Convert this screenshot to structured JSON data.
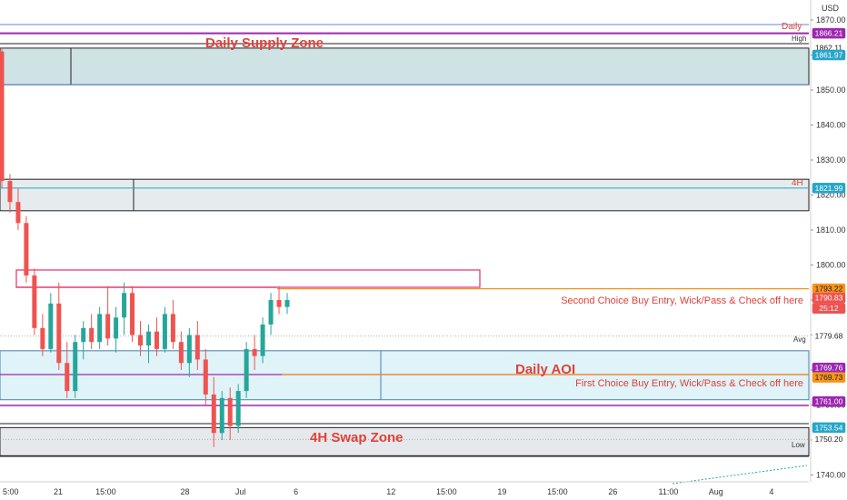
{
  "chart_data": {
    "type": "candlestick",
    "currency": "USD",
    "ylim": [
      1737,
      1873
    ],
    "y_ticks": [
      "1870.00",
      "1860.00",
      "1850.00",
      "1840.00",
      "1830.00",
      "1820.00",
      "1810.00",
      "1800.00",
      "1790.00",
      "1780.00",
      "1770.00",
      "1760.00",
      "1750.00",
      "1740.00"
    ],
    "x_ticks": [
      {
        "label": "5:00",
        "pos": 0
      },
      {
        "label": "21",
        "pos": 7
      },
      {
        "label": "15:00",
        "pos": 13
      },
      {
        "label": "28",
        "pos": 23
      },
      {
        "label": "Jul",
        "pos": 30
      },
      {
        "label": "6",
        "pos": 37
      },
      {
        "label": "12",
        "pos": 49
      },
      {
        "label": "15:00",
        "pos": 56
      },
      {
        "label": "19",
        "pos": 63
      },
      {
        "label": "15:00",
        "pos": 70
      },
      {
        "label": "26",
        "pos": 77
      },
      {
        "label": "11:00",
        "pos": 84
      },
      {
        "label": "Aug",
        "pos": 90
      },
      {
        "label": "4",
        "pos": 97
      }
    ],
    "x_range": [
      0,
      102
    ],
    "candles": [
      [
        1861,
        1862,
        1822,
        1824
      ],
      [
        1824,
        1826,
        1815,
        1818
      ],
      [
        1818,
        1822,
        1810,
        1812
      ],
      [
        1812,
        1814,
        1795,
        1797
      ],
      [
        1797,
        1799,
        1780,
        1782
      ],
      [
        1782,
        1786,
        1774,
        1776
      ],
      [
        1776,
        1792,
        1775,
        1789
      ],
      [
        1789,
        1795,
        1770,
        1772
      ],
      [
        1772,
        1778,
        1762,
        1764
      ],
      [
        1764,
        1780,
        1762,
        1778
      ],
      [
        1778,
        1784,
        1773,
        1782
      ],
      [
        1782,
        1786,
        1776,
        1778
      ],
      [
        1778,
        1788,
        1776,
        1786
      ],
      [
        1786,
        1794,
        1777,
        1779
      ],
      [
        1779,
        1788,
        1775,
        1785
      ],
      [
        1785,
        1795,
        1780,
        1792
      ],
      [
        1792,
        1794,
        1778,
        1780
      ],
      [
        1780,
        1784,
        1774,
        1777
      ],
      [
        1777,
        1783,
        1772,
        1781
      ],
      [
        1781,
        1785,
        1774,
        1776
      ],
      [
        1776,
        1788,
        1775,
        1786
      ],
      [
        1786,
        1790,
        1776,
        1778
      ],
      [
        1778,
        1781,
        1770,
        1772
      ],
      [
        1772,
        1782,
        1768,
        1780
      ],
      [
        1780,
        1784,
        1770,
        1773
      ],
      [
        1773,
        1776,
        1760,
        1763
      ],
      [
        1763,
        1768,
        1748,
        1752
      ],
      [
        1752,
        1764,
        1750,
        1762
      ],
      [
        1762,
        1765,
        1750,
        1754
      ],
      [
        1754,
        1766,
        1752,
        1764
      ],
      [
        1764,
        1778,
        1762,
        1776
      ],
      [
        1776,
        1780,
        1770,
        1774
      ],
      [
        1774,
        1785,
        1772,
        1783
      ],
      [
        1783,
        1792,
        1780,
        1790
      ],
      [
        1790,
        1794,
        1786,
        1788
      ],
      [
        1788,
        1792,
        1786,
        1790
      ]
    ],
    "lines": [
      {
        "name": "Daily",
        "value": 1866.21,
        "color": "#9c27b0"
      },
      {
        "name": "High",
        "value": 1862.11,
        "color": "#333333"
      },
      {
        "name": "4H",
        "value": 1821.99,
        "color": "#26a6c8"
      },
      {
        "name": "second_choice",
        "value": 1793.22,
        "color": "#f7931a"
      },
      {
        "name": "first_choice",
        "value": 1769.73,
        "color": "#f7931a"
      },
      {
        "name": "Avg",
        "value": 1779.68,
        "color": "#888888"
      },
      {
        "name": "Low",
        "value": 1750.2,
        "color": "#888888"
      }
    ],
    "zones": [
      {
        "name": "Daily Supply Zone",
        "top": 1861.97,
        "bottom": 1851.5,
        "color": "#cfe3e5"
      },
      {
        "name": "4H",
        "top": 1824.5,
        "bottom": 1815.5,
        "color": "#e6ecee"
      },
      {
        "name": "Daily AOI",
        "top": 1775.5,
        "bottom": 1761.5,
        "color": "#dff3f8"
      },
      {
        "name": "4H Swap Zone",
        "top": 1753.54,
        "bottom": 1745.5,
        "color": "#e6e9ec"
      }
    ],
    "price_tags": [
      {
        "label": "1866.21",
        "value": 1866.21,
        "bg": "#9c27b0",
        "fg": "#ffffff"
      },
      {
        "label": "1862.11",
        "value": 1862.11,
        "bg": "#ffffff",
        "fg": "#333333"
      },
      {
        "label": "1861.97",
        "value": 1860.0,
        "bg": "#26a6c8",
        "fg": "#ffffff"
      },
      {
        "label": "1821.99",
        "value": 1821.99,
        "bg": "#26a6c8",
        "fg": "#ffffff"
      },
      {
        "label": "1793.22",
        "value": 1793.22,
        "bg": "#f7931a",
        "fg": "#222222"
      },
      {
        "label": "1790.83",
        "value": 1790.6,
        "bg": "#ef5350",
        "fg": "#ffffff"
      },
      {
        "label": "25:12",
        "value": 1787.6,
        "bg": "#ef5350",
        "fg": "#ffffff"
      },
      {
        "label": "1779.68",
        "value": 1779.68,
        "bg": "#ffffff",
        "fg": "#555555"
      },
      {
        "label": "1769.76",
        "value": 1770.6,
        "bg": "#9c27b0",
        "fg": "#ffffff"
      },
      {
        "label": "1769.73",
        "value": 1767.9,
        "bg": "#f7931a",
        "fg": "#222222"
      },
      {
        "label": "1761.00",
        "value": 1761.0,
        "bg": "#9c27b0",
        "fg": "#ffffff"
      },
      {
        "label": "1753.54",
        "value": 1753.54,
        "bg": "#26a6c8",
        "fg": "#ffffff"
      },
      {
        "label": "1750.20",
        "value": 1750.2,
        "bg": "#ffffff",
        "fg": "#555555"
      }
    ],
    "labels": {
      "currency": "USD",
      "daily_line": "Daily",
      "high": "High",
      "fourh_line": "4H",
      "avg": "Avg",
      "low": "Low",
      "supply_zone": "Daily Supply Zone",
      "daily_aoi": "Daily AOI",
      "swap_zone": "4H Swap Zone",
      "second_choice": "Second Choice Buy Entry, Wick/Pass & Check off here",
      "first_choice": "First Choice Buy Entry, Wick/Pass & Check off here"
    },
    "colors": {
      "up": "#26a69a",
      "down": "#ef5350",
      "accent": "#e0413a"
    }
  }
}
